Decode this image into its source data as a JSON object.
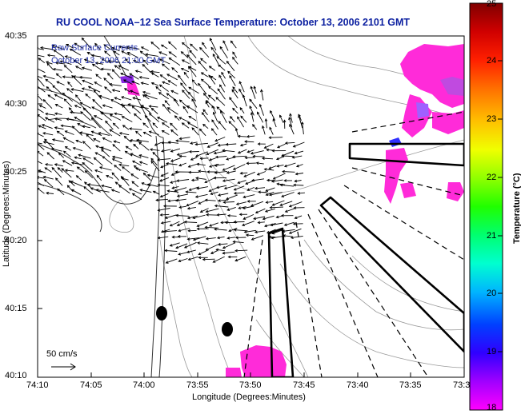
{
  "title": "RU COOL  NOAA–12  Sea Surface Temperature:  October 13, 2006 2101 GMT",
  "overlay": {
    "line1": "Raw Surface Currents",
    "line2": "October 13, 2006 21:00 GMT"
  },
  "axes": {
    "xlabel": "Longitude (Degrees:Minutes)",
    "ylabel": "Latitude (Degrees:Minutes)",
    "xticks": [
      "74:10",
      "74:05",
      "74:00",
      "73:55",
      "73:50",
      "73:45",
      "73:40",
      "73:35",
      "73:3"
    ],
    "yticks": [
      "40:35",
      "40:30",
      "40:25",
      "40:20",
      "40:15",
      "40:10"
    ]
  },
  "scale": {
    "label": "50 cm/s"
  },
  "colorbar": {
    "title": "Temperature (°C)",
    "ticks": [
      "25",
      "24",
      "23",
      "22",
      "21",
      "20",
      "19",
      "18"
    ],
    "range": [
      18,
      25
    ],
    "colors": [
      "#ff00ff",
      "#8000ff",
      "#0000ff",
      "#00c8ff",
      "#00ff80",
      "#80ff00",
      "#ffff00",
      "#ff8000",
      "#ff0000",
      "#800000"
    ]
  },
  "colors": {
    "title": "#0b1fa0",
    "overlay_text": "#1f2ea8",
    "sst_warm": "#ff2bd9",
    "sst_purple": "#8a2be2"
  }
}
